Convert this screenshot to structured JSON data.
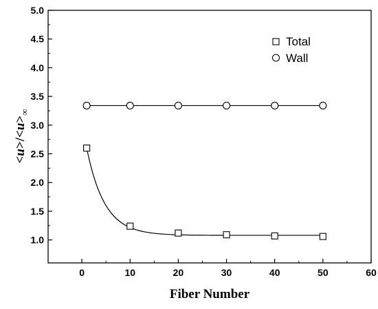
{
  "chart_data": {
    "type": "scatter",
    "xlabel": "Fiber Number",
    "ylabel": {
      "before": "<",
      "u1": "u",
      "middle": ">/<",
      "u2": "u",
      "after": ">",
      "subscript": "∞"
    },
    "xlim": [
      -7,
      60
    ],
    "ylim": [
      0.6,
      5.0
    ],
    "x_ticks": [
      0,
      10,
      20,
      30,
      40,
      50,
      60
    ],
    "y_ticks": [
      "1.0",
      "1.5",
      "2.0",
      "2.5",
      "3.0",
      "3.5",
      "4.0",
      "4.5",
      "5.0"
    ],
    "grid": false,
    "legend_position": "top-right",
    "series": [
      {
        "name": "Total",
        "marker": "square",
        "x": [
          1,
          10,
          20,
          30,
          40,
          50
        ],
        "y": [
          2.6,
          1.24,
          1.12,
          1.09,
          1.07,
          1.06
        ],
        "fit": "exponential-decay",
        "fit_params": {
          "y0": 1.08,
          "A": 1.52,
          "t": 3.73
        }
      },
      {
        "name": "Wall",
        "marker": "circle",
        "x": [
          1,
          10,
          20,
          30,
          40,
          50
        ],
        "y": [
          3.34,
          3.34,
          3.34,
          3.34,
          3.34,
          3.34
        ],
        "fit": "linear"
      }
    ]
  }
}
